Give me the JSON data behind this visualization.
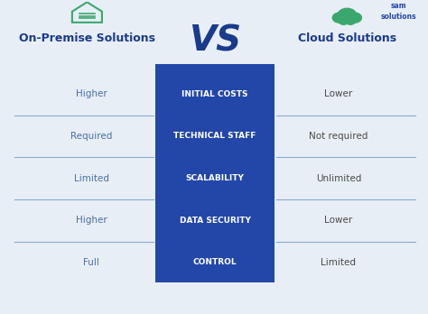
{
  "bg_color": "#e8eef5",
  "center_box_color": "#2347a8",
  "left_title": "On-Premise Solutions",
  "right_title": "Cloud Solutions",
  "vs_text": "VS",
  "title_color": "#1a3a8c",
  "vs_color": "#1a3a8c",
  "center_labels": [
    "INITIAL COSTS",
    "TECHNICAL STAFF",
    "SCALABILITY",
    "DATA SECURITY",
    "CONTROL"
  ],
  "left_values": [
    "Higher",
    "Required",
    "Limited",
    "Higher",
    "Full"
  ],
  "right_values": [
    "Lower",
    "Not required",
    "Unlimited",
    "Lower",
    "Limited"
  ],
  "left_color": "#4a6fa5",
  "right_color": "#4a4a4a",
  "center_text_color": "#ffffff",
  "line_color": "#8aaacc",
  "icon_color": "#3aa86e"
}
